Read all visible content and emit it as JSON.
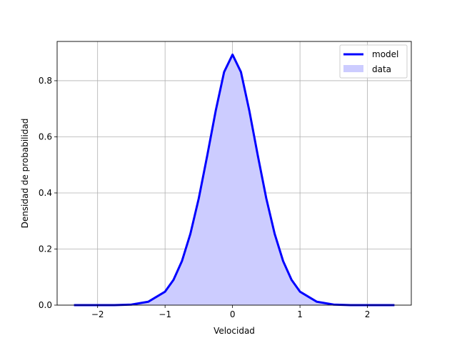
{
  "chart_data": {
    "type": "area",
    "xlabel": "Velocidad",
    "ylabel": "Densidad de probabilidad",
    "xlim": [
      -2.6,
      2.65
    ],
    "ylim": [
      0.0,
      0.94
    ],
    "xticks": [
      -2,
      -1,
      0,
      1,
      2
    ],
    "xtick_labels": [
      "−2",
      "−1",
      "0",
      "1",
      "2"
    ],
    "yticks": [
      0.0,
      0.2,
      0.4,
      0.6,
      0.8
    ],
    "ytick_labels": [
      "0.0",
      "0.2",
      "0.4",
      "0.6",
      "0.8"
    ],
    "grid": true,
    "legend_position": "top-right",
    "series": [
      {
        "name": "model",
        "kind": "line",
        "color": "#0000ff",
        "x": [
          -2.35,
          -2.0,
          -1.75,
          -1.5,
          -1.25,
          -1.0,
          -0.875,
          -0.75,
          -0.625,
          -0.5,
          -0.375,
          -0.25,
          -0.125,
          0.0,
          0.125,
          0.25,
          0.375,
          0.5,
          0.625,
          0.75,
          0.875,
          1.0,
          1.25,
          1.5,
          1.75,
          2.0,
          2.4
        ],
        "y": [
          0.0,
          0.0,
          0.0,
          0.002,
          0.012,
          0.048,
          0.09,
          0.157,
          0.254,
          0.381,
          0.533,
          0.692,
          0.831,
          0.893,
          0.831,
          0.692,
          0.533,
          0.381,
          0.254,
          0.157,
          0.09,
          0.048,
          0.012,
          0.002,
          0.0,
          0.0,
          0.0
        ]
      },
      {
        "name": "data",
        "kind": "area",
        "color": "#ccccff",
        "x": [
          -2.35,
          -2.0,
          -1.75,
          -1.5,
          -1.25,
          -1.0,
          -0.875,
          -0.75,
          -0.625,
          -0.5,
          -0.375,
          -0.25,
          -0.125,
          0.0,
          0.125,
          0.25,
          0.375,
          0.5,
          0.625,
          0.75,
          0.875,
          1.0,
          1.25,
          1.5,
          1.75,
          2.0,
          2.4
        ],
        "y": [
          0.0,
          0.0,
          0.0,
          0.002,
          0.012,
          0.048,
          0.09,
          0.157,
          0.254,
          0.381,
          0.533,
          0.692,
          0.831,
          0.893,
          0.831,
          0.692,
          0.533,
          0.381,
          0.254,
          0.157,
          0.09,
          0.048,
          0.012,
          0.002,
          0.0,
          0.0,
          0.0
        ]
      }
    ]
  }
}
